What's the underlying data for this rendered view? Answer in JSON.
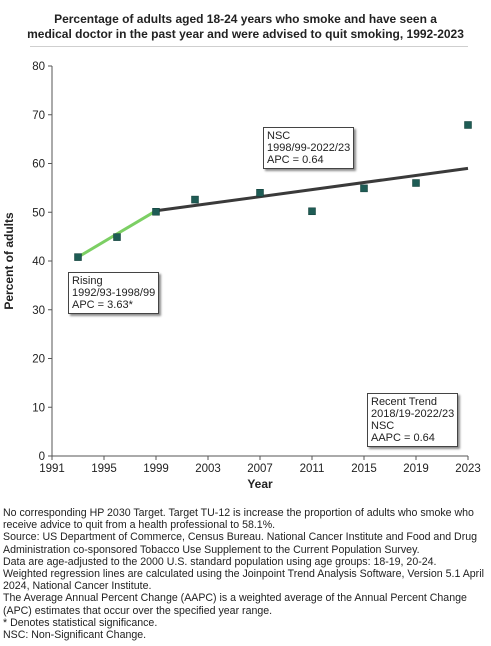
{
  "title_lines": [
    "Percentage of adults aged 18-24 years who smoke and have seen a",
    "medical doctor in the past year and were advised to quit smoking, 1992-2023"
  ],
  "colors": {
    "rising_segment": "#7ccf64",
    "nsc_segment": "#3a3a3a",
    "point_fill": "#1e5c55",
    "axis": "#555555"
  },
  "chart_data": {
    "type": "scatter",
    "title": "Percentage of adults aged 18-24 years who smoke and have seen a medical doctor in the past year and were advised to quit smoking, 1992-2023",
    "xlabel": "Year",
    "ylabel": "Percent of adults",
    "xlim": [
      1991,
      2023
    ],
    "ylim": [
      0,
      80
    ],
    "x_ticks": [
      "1991",
      "1995",
      "1999",
      "2003",
      "2007",
      "2011",
      "2015",
      "2019",
      "2023"
    ],
    "y_ticks": [
      "0",
      "10",
      "20",
      "30",
      "40",
      "50",
      "60",
      "70",
      "80"
    ],
    "grid": false,
    "points": [
      {
        "x": 1993,
        "y": 40.8
      },
      {
        "x": 1996,
        "y": 44.9
      },
      {
        "x": 1999,
        "y": 50.1
      },
      {
        "x": 2002,
        "y": 52.6
      },
      {
        "x": 2007,
        "y": 54.0
      },
      {
        "x": 2011,
        "y": 50.2
      },
      {
        "x": 2015,
        "y": 54.9
      },
      {
        "x": 2019,
        "y": 56.0
      },
      {
        "x": 2023,
        "y": 67.9
      }
    ],
    "trend_segments": [
      {
        "label": "Rising",
        "x": [
          1993,
          1999
        ],
        "y": [
          40.8,
          50.3
        ]
      },
      {
        "label": "NSC",
        "x": [
          1999,
          2023
        ],
        "y": [
          50.3,
          59.0
        ]
      }
    ],
    "annotations": {
      "rising": [
        "Rising",
        "1992/93-1998/99",
        "APC =  3.63*"
      ],
      "nsc": [
        "NSC",
        "1998/99-2022/23",
        "APC =  0.64"
      ],
      "recent": [
        "Recent Trend",
        "2018/19-2022/23",
        "NSC",
        "AAPC =  0.64"
      ]
    }
  },
  "footnotes": [
    "No corresponding HP 2030 Target. Target TU-12 is increase the proportion of adults who smoke who receive advice to quit from a health professional to 58.1%.",
    "Source: US Department of Commerce, Census Bureau. National Cancer Institute and Food and Drug Administration co-sponsored Tobacco Use Supplement to the Current Population Survey.",
    "Data are age-adjusted to the 2000 U.S. standard population using age groups: 18-19, 20-24.",
    "Weighted regression lines are calculated using the Joinpoint Trend Analysis Software, Version 5.1 April 2024, National Cancer Institute.",
    "The Average Annual Percent Change (AAPC) is a weighted average of the Annual Percent Change (APC) estimates that occur over the specified year range.",
    "* Denotes statistical significance.",
    "NSC: Non-Significant Change."
  ]
}
